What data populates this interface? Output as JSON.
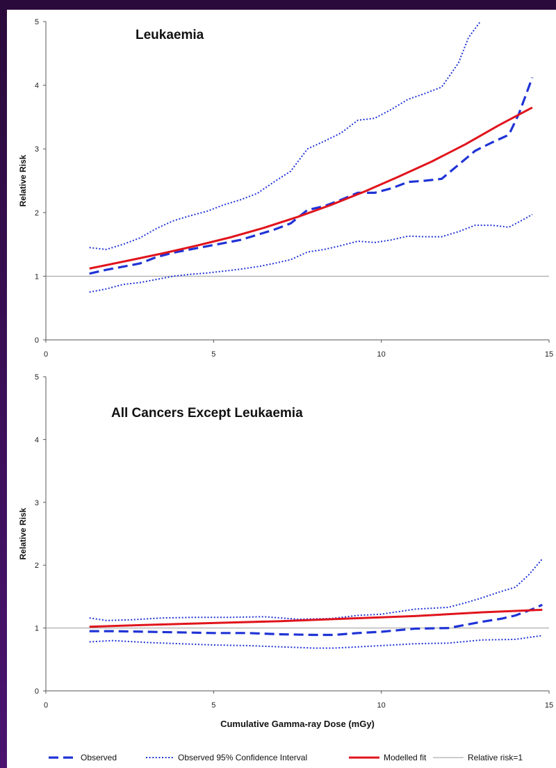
{
  "chart_data": [
    {
      "type": "line",
      "title": "Leukaemia",
      "xlabel": "",
      "ylabel": "Relative Risk",
      "xlim": [
        0,
        15
      ],
      "ylim": [
        0,
        5
      ],
      "x_ticks": [
        "0",
        "5",
        "10",
        "15"
      ],
      "y_ticks": [
        "0",
        "1",
        "2",
        "3",
        "4",
        "5"
      ],
      "series": [
        {
          "name": "Observed",
          "style": "dashed",
          "color": "#1f33d6",
          "points": [
            [
              1.3,
              1.04
            ],
            [
              1.8,
              1.1
            ],
            [
              2.3,
              1.15
            ],
            [
              2.8,
              1.2
            ],
            [
              3.3,
              1.3
            ],
            [
              3.8,
              1.37
            ],
            [
              4.3,
              1.42
            ],
            [
              4.8,
              1.47
            ],
            [
              5.3,
              1.52
            ],
            [
              5.8,
              1.57
            ],
            [
              6.3,
              1.65
            ],
            [
              6.8,
              1.73
            ],
            [
              7.3,
              1.83
            ],
            [
              7.8,
              2.04
            ],
            [
              8.3,
              2.1
            ],
            [
              8.8,
              2.2
            ],
            [
              9.3,
              2.31
            ],
            [
              9.8,
              2.31
            ],
            [
              10.3,
              2.38
            ],
            [
              10.8,
              2.48
            ],
            [
              11.3,
              2.5
            ],
            [
              11.8,
              2.53
            ],
            [
              12.3,
              2.75
            ],
            [
              12.8,
              2.97
            ],
            [
              13.3,
              3.1
            ],
            [
              13.8,
              3.22
            ],
            [
              14.1,
              3.55
            ],
            [
              14.5,
              4.12
            ]
          ]
        },
        {
          "name": "Observed 95% Confidence Interval (upper)",
          "style": "dotted",
          "color": "#1f33d6",
          "points": [
            [
              1.3,
              1.45
            ],
            [
              1.8,
              1.42
            ],
            [
              2.3,
              1.5
            ],
            [
              2.8,
              1.6
            ],
            [
              3.3,
              1.75
            ],
            [
              3.8,
              1.87
            ],
            [
              4.3,
              1.95
            ],
            [
              4.8,
              2.02
            ],
            [
              5.3,
              2.12
            ],
            [
              5.8,
              2.2
            ],
            [
              6.3,
              2.3
            ],
            [
              6.8,
              2.48
            ],
            [
              7.3,
              2.65
            ],
            [
              7.8,
              3.0
            ],
            [
              8.3,
              3.12
            ],
            [
              8.8,
              3.25
            ],
            [
              9.3,
              3.45
            ],
            [
              9.8,
              3.48
            ],
            [
              10.3,
              3.62
            ],
            [
              10.8,
              3.78
            ],
            [
              11.3,
              3.87
            ],
            [
              11.8,
              3.97
            ],
            [
              12.3,
              4.35
            ],
            [
              12.6,
              4.75
            ],
            [
              12.95,
              5.0
            ]
          ]
        },
        {
          "name": "Observed 95% Confidence Interval (lower)",
          "style": "dotted",
          "color": "#1f33d6",
          "points": [
            [
              1.3,
              0.75
            ],
            [
              1.8,
              0.8
            ],
            [
              2.3,
              0.87
            ],
            [
              2.8,
              0.9
            ],
            [
              3.3,
              0.95
            ],
            [
              3.8,
              1.0
            ],
            [
              4.3,
              1.03
            ],
            [
              4.8,
              1.05
            ],
            [
              5.3,
              1.08
            ],
            [
              5.8,
              1.11
            ],
            [
              6.3,
              1.15
            ],
            [
              6.8,
              1.2
            ],
            [
              7.3,
              1.26
            ],
            [
              7.8,
              1.38
            ],
            [
              8.3,
              1.42
            ],
            [
              8.8,
              1.48
            ],
            [
              9.3,
              1.55
            ],
            [
              9.8,
              1.53
            ],
            [
              10.3,
              1.57
            ],
            [
              10.8,
              1.63
            ],
            [
              11.3,
              1.62
            ],
            [
              11.8,
              1.62
            ],
            [
              12.3,
              1.7
            ],
            [
              12.8,
              1.8
            ],
            [
              13.3,
              1.8
            ],
            [
              13.8,
              1.77
            ],
            [
              14.2,
              1.88
            ],
            [
              14.5,
              1.97
            ]
          ]
        },
        {
          "name": "Modelled fit",
          "style": "solid",
          "color": "#e0141c",
          "points": [
            [
              1.3,
              1.12
            ],
            [
              2.5,
              1.25
            ],
            [
              3.5,
              1.36
            ],
            [
              4.5,
              1.48
            ],
            [
              5.5,
              1.61
            ],
            [
              6.5,
              1.76
            ],
            [
              7.5,
              1.93
            ],
            [
              8.5,
              2.12
            ],
            [
              9.5,
              2.33
            ],
            [
              10.5,
              2.56
            ],
            [
              11.5,
              2.8
            ],
            [
              12.5,
              3.07
            ],
            [
              13.5,
              3.37
            ],
            [
              14.5,
              3.65
            ]
          ]
        },
        {
          "name": "Relative risk=1",
          "style": "solid",
          "color": "#999999",
          "points": [
            [
              0,
              1
            ],
            [
              15,
              1
            ]
          ]
        }
      ]
    },
    {
      "type": "line",
      "title": "All Cancers Except Leukaemia",
      "xlabel": "Cumulative Gamma-ray Dose (mGy)",
      "ylabel": "Relative Risk",
      "xlim": [
        0,
        15
      ],
      "ylim": [
        0,
        5
      ],
      "x_ticks": [
        "0",
        "5",
        "10",
        "15"
      ],
      "y_ticks": [
        "0",
        "1",
        "2",
        "3",
        "4",
        "5"
      ],
      "series": [
        {
          "name": "Observed",
          "style": "dashed",
          "color": "#1f33d6",
          "points": [
            [
              1.3,
              0.95
            ],
            [
              2.0,
              0.95
            ],
            [
              3.0,
              0.94
            ],
            [
              4.0,
              0.93
            ],
            [
              5.0,
              0.92
            ],
            [
              6.0,
              0.92
            ],
            [
              7.0,
              0.9
            ],
            [
              8.0,
              0.89
            ],
            [
              8.6,
              0.89
            ],
            [
              9.3,
              0.92
            ],
            [
              10.0,
              0.94
            ],
            [
              11.0,
              0.99
            ],
            [
              12.0,
              1.0
            ],
            [
              12.5,
              1.05
            ],
            [
              13.0,
              1.1
            ],
            [
              13.6,
              1.15
            ],
            [
              14.0,
              1.2
            ],
            [
              14.5,
              1.3
            ],
            [
              14.8,
              1.37
            ]
          ]
        },
        {
          "name": "Observed 95% Confidence Interval (upper)",
          "style": "dotted",
          "color": "#1f33d6",
          "points": [
            [
              1.3,
              1.16
            ],
            [
              1.8,
              1.12
            ],
            [
              2.5,
              1.13
            ],
            [
              3.5,
              1.16
            ],
            [
              4.5,
              1.17
            ],
            [
              5.5,
              1.17
            ],
            [
              6.5,
              1.18
            ],
            [
              7.5,
              1.14
            ],
            [
              8.5,
              1.15
            ],
            [
              9.3,
              1.2
            ],
            [
              10.0,
              1.22
            ],
            [
              11.0,
              1.3
            ],
            [
              12.0,
              1.33
            ],
            [
              12.5,
              1.4
            ],
            [
              13.0,
              1.48
            ],
            [
              13.5,
              1.57
            ],
            [
              14.0,
              1.65
            ],
            [
              14.4,
              1.85
            ],
            [
              14.8,
              2.1
            ]
          ]
        },
        {
          "name": "Observed 95% Confidence Interval (lower)",
          "style": "dotted",
          "color": "#1f33d6",
          "points": [
            [
              1.3,
              0.78
            ],
            [
              2.0,
              0.8
            ],
            [
              3.0,
              0.77
            ],
            [
              4.0,
              0.75
            ],
            [
              5.0,
              0.73
            ],
            [
              6.0,
              0.72
            ],
            [
              7.0,
              0.7
            ],
            [
              8.0,
              0.68
            ],
            [
              8.6,
              0.68
            ],
            [
              9.3,
              0.7
            ],
            [
              10.0,
              0.72
            ],
            [
              11.0,
              0.75
            ],
            [
              12.0,
              0.76
            ],
            [
              13.0,
              0.81
            ],
            [
              14.0,
              0.82
            ],
            [
              14.8,
              0.88
            ]
          ]
        },
        {
          "name": "Modelled fit",
          "style": "solid",
          "color": "#e0141c",
          "points": [
            [
              1.3,
              1.02
            ],
            [
              3.0,
              1.05
            ],
            [
              5.0,
              1.08
            ],
            [
              7.0,
              1.11
            ],
            [
              9.0,
              1.15
            ],
            [
              11.0,
              1.19
            ],
            [
              13.0,
              1.25
            ],
            [
              14.8,
              1.29
            ]
          ]
        },
        {
          "name": "Relative risk=1",
          "style": "solid",
          "color": "#999999",
          "points": [
            [
              0,
              1
            ],
            [
              15,
              1
            ]
          ]
        }
      ]
    }
  ],
  "legend": [
    {
      "label": "Observed",
      "style": "dashed",
      "color": "#1f33d6"
    },
    {
      "label": "Observed 95% Confidence Interval",
      "style": "dotted",
      "color": "#1f33d6"
    },
    {
      "label": "Modelled fit",
      "style": "solid",
      "color": "#e0141c"
    },
    {
      "label": "Relative risk=1",
      "style": "thin",
      "color": "#999999"
    }
  ]
}
